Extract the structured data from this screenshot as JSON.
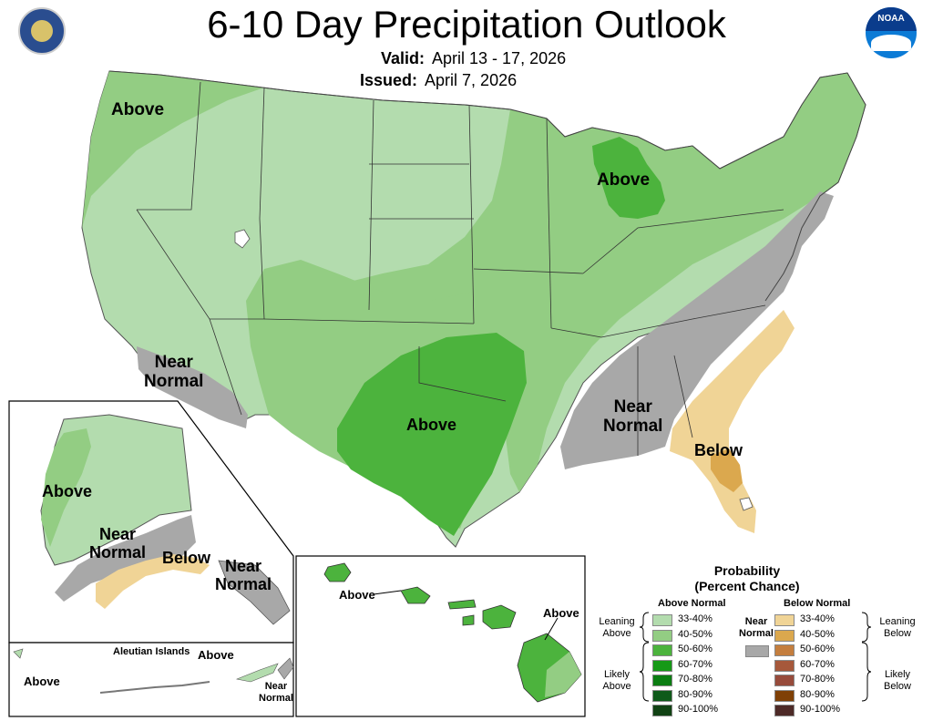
{
  "header": {
    "title": "6-10 Day Precipitation Outlook",
    "valid_label": "Valid:",
    "valid_value": "April 13 - 17, 2026",
    "issued_label": "Issued:",
    "issued_value": "April 7, 2026"
  },
  "logos": {
    "commerce_seal": "seal-icon",
    "noaa": "NOAA"
  },
  "map_labels": {
    "conus_northwest": "Above",
    "conus_michigan": "Above",
    "conus_southwest_line1": "Near",
    "conus_southwest_line2": "Normal",
    "conus_texas": "Above",
    "conus_southeast_line1": "Near",
    "conus_southeast_line2": "Normal",
    "conus_florida": "Below",
    "alaska_west": "Above",
    "alaska_south_line1": "Near",
    "alaska_south_line2": "Normal",
    "alaska_below": "Below",
    "alaska_east_line1": "Near",
    "alaska_east_line2": "Normal",
    "aleutian_title": "Aleutian Islands",
    "aleutian_west": "Above",
    "aleutian_east": "Above",
    "aleutian_near_line1": "Near",
    "aleutian_near_line2": "Normal",
    "hawaii_west": "Above",
    "hawaii_east": "Above"
  },
  "legend": {
    "title_line1": "Probability",
    "title_line2": "(Percent Chance)",
    "above_header": "Above Normal",
    "below_header": "Below Normal",
    "near_line1": "Near",
    "near_line2": "Normal",
    "near_color": "#a8a8a8",
    "leaning_above_line1": "Leaning",
    "leaning_above_line2": "Above",
    "likely_above_line1": "Likely",
    "likely_above_line2": "Above",
    "leaning_below_line1": "Leaning",
    "leaning_below_line2": "Below",
    "likely_below_line1": "Likely",
    "likely_below_line2": "Below",
    "above": [
      {
        "range": "33-40%",
        "color": "#b3dcae"
      },
      {
        "range": "40-50%",
        "color": "#93cd83"
      },
      {
        "range": "50-60%",
        "color": "#4cb33d"
      },
      {
        "range": "60-70%",
        "color": "#169917"
      },
      {
        "range": "70-80%",
        "color": "#0b7d12"
      },
      {
        "range": "80-90%",
        "color": "#0f5a1a"
      },
      {
        "range": "90-100%",
        "color": "#114214"
      }
    ],
    "below": [
      {
        "range": "33-40%",
        "color": "#f0d496"
      },
      {
        "range": "40-50%",
        "color": "#dba84e"
      },
      {
        "range": "50-60%",
        "color": "#c47e3e"
      },
      {
        "range": "60-70%",
        "color": "#a6583b"
      },
      {
        "range": "70-80%",
        "color": "#974b3b"
      },
      {
        "range": "80-90%",
        "color": "#7f4006"
      },
      {
        "range": "90-100%",
        "color": "#4d2a27"
      }
    ]
  }
}
